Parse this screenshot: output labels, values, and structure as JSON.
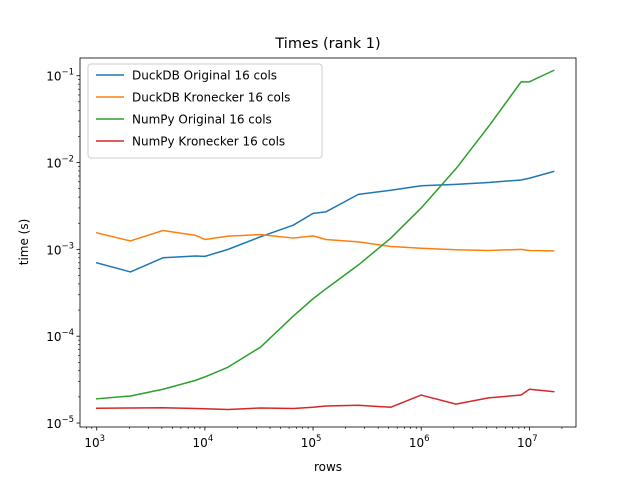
{
  "chart_data": {
    "type": "line",
    "title": "Times (rank 1)",
    "xlabel": "rows",
    "ylabel": "time (s)",
    "x_scale": "log",
    "y_scale": "log",
    "xlim": [
      700,
      27000000
    ],
    "ylim": [
      9e-06,
      0.16
    ],
    "x_ticks": [
      {
        "value": 1000,
        "base": "10",
        "exp": "3"
      },
      {
        "value": 10000,
        "base": "10",
        "exp": "4"
      },
      {
        "value": 100000,
        "base": "10",
        "exp": "5"
      },
      {
        "value": 1000000,
        "base": "10",
        "exp": "6"
      },
      {
        "value": 10000000,
        "base": "10",
        "exp": "7"
      }
    ],
    "y_ticks": [
      {
        "value": 1e-05,
        "base": "10",
        "exp": "−5"
      },
      {
        "value": 0.0001,
        "base": "10",
        "exp": "−4"
      },
      {
        "value": 0.001,
        "base": "10",
        "exp": "−3"
      },
      {
        "value": 0.01,
        "base": "10",
        "exp": "−2"
      },
      {
        "value": 0.1,
        "base": "10",
        "exp": "−1"
      }
    ],
    "grid": false,
    "legend_position": "top-left",
    "series": [
      {
        "name": "DuckDB Original 16 cols",
        "color": "#1f77b4",
        "x": [
          1000,
          2048,
          4096,
          8192,
          10000,
          16384,
          32768,
          65536,
          100000,
          131072,
          262144,
          524288,
          1000000,
          2097152,
          4194304,
          8388608,
          10000000,
          16777216
        ],
        "y": [
          0.0007,
          0.00055,
          0.0008,
          0.00084,
          0.00083,
          0.001,
          0.0014,
          0.0019,
          0.0026,
          0.0027,
          0.0043,
          0.0048,
          0.0054,
          0.0056,
          0.0059,
          0.0063,
          0.0066,
          0.0079
        ]
      },
      {
        "name": "DuckDB Kronecker 16 cols",
        "color": "#ff7f0e",
        "x": [
          1000,
          2048,
          4096,
          8192,
          10000,
          16384,
          32768,
          65536,
          100000,
          131072,
          262144,
          524288,
          1000000,
          2097152,
          4194304,
          8388608,
          10000000,
          16777216
        ],
        "y": [
          0.00155,
          0.00125,
          0.00165,
          0.00145,
          0.0013,
          0.00142,
          0.00148,
          0.00135,
          0.00143,
          0.0013,
          0.00122,
          0.00108,
          0.00103,
          0.00099,
          0.00097,
          0.001,
          0.00097,
          0.00096
        ]
      },
      {
        "name": "NumPy Original 16 cols",
        "color": "#2ca02c",
        "x": [
          1000,
          2048,
          4096,
          8192,
          10000,
          16384,
          32768,
          65536,
          100000,
          131072,
          262144,
          524288,
          1000000,
          2097152,
          4194304,
          8388608,
          10000000,
          16777216
        ],
        "y": [
          1.9e-05,
          2.05e-05,
          2.45e-05,
          3.1e-05,
          3.4e-05,
          4.4e-05,
          7.5e-05,
          0.00017,
          0.00027,
          0.00035,
          0.00066,
          0.00135,
          0.003,
          0.0085,
          0.026,
          0.085,
          0.085,
          0.115
        ]
      },
      {
        "name": "NumPy Kronecker 16 cols",
        "color": "#d62728",
        "x": [
          1000,
          2048,
          4096,
          8192,
          10000,
          16384,
          32768,
          65536,
          100000,
          131072,
          262144,
          524288,
          1000000,
          2097152,
          4194304,
          8388608,
          10000000,
          16777216
        ],
        "y": [
          1.48e-05,
          1.49e-05,
          1.5e-05,
          1.47e-05,
          1.46e-05,
          1.43e-05,
          1.49e-05,
          1.47e-05,
          1.52e-05,
          1.57e-05,
          1.6e-05,
          1.52e-05,
          2.1e-05,
          1.65e-05,
          1.95e-05,
          2.1e-05,
          2.45e-05,
          2.3e-05
        ]
      }
    ]
  }
}
